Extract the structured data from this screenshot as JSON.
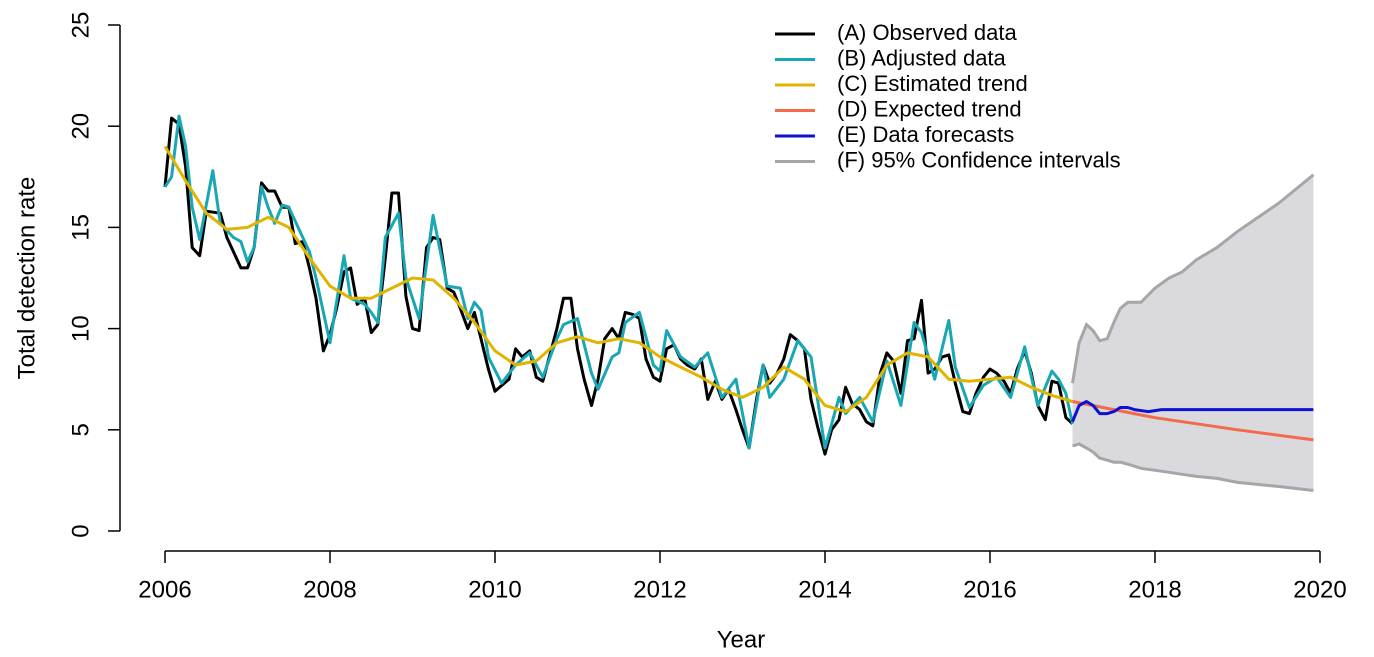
{
  "chart_data": {
    "type": "line",
    "xlabel": "Year",
    "ylabel": "Total detection rate",
    "xlim": [
      2006,
      2020
    ],
    "xticks": [
      2006,
      2008,
      2010,
      2012,
      2014,
      2016,
      2018,
      2020
    ],
    "ylim": [
      0,
      25
    ],
    "yticks": [
      0,
      5,
      10,
      15,
      20,
      25
    ],
    "legend": "top-right",
    "series": [
      {
        "name": "(A) Observed data",
        "color": "#000000",
        "x": [
          2006,
          2006.08,
          2006.17,
          2006.25,
          2006.33,
          2006.42,
          2006.5,
          2006.67,
          2006.75,
          2006.92,
          2007,
          2007.08,
          2007.17,
          2007.25,
          2007.33,
          2007.42,
          2007.5,
          2007.58,
          2007.67,
          2007.75,
          2007.83,
          2007.92,
          2008,
          2008.08,
          2008.17,
          2008.25,
          2008.33,
          2008.42,
          2008.5,
          2008.58,
          2008.67,
          2008.75,
          2008.83,
          2008.92,
          2009,
          2009.08,
          2009.17,
          2009.25,
          2009.33,
          2009.42,
          2009.5,
          2009.58,
          2009.67,
          2009.75,
          2009.83,
          2009.92,
          2010,
          2010.17,
          2010.25,
          2010.33,
          2010.42,
          2010.5,
          2010.58,
          2010.75,
          2010.83,
          2010.92,
          2011,
          2011.08,
          2011.17,
          2011.25,
          2011.33,
          2011.42,
          2011.5,
          2011.58,
          2011.67,
          2011.75,
          2011.83,
          2011.92,
          2012,
          2012.08,
          2012.17,
          2012.25,
          2012.33,
          2012.42,
          2012.5,
          2012.58,
          2012.67,
          2012.75,
          2012.83,
          2012.92,
          2013,
          2013.08,
          2013.17,
          2013.25,
          2013.33,
          2013.42,
          2013.5,
          2013.58,
          2013.67,
          2013.75,
          2013.83,
          2013.92,
          2014,
          2014.08,
          2014.17,
          2014.25,
          2014.33,
          2014.42,
          2014.5,
          2014.58,
          2014.67,
          2014.75,
          2014.83,
          2014.92,
          2015,
          2015.08,
          2015.17,
          2015.25,
          2015.33,
          2015.42,
          2015.5,
          2015.58,
          2015.67,
          2015.75,
          2015.83,
          2015.92,
          2016,
          2016.08,
          2016.17,
          2016.25,
          2016.33,
          2016.42,
          2016.5,
          2016.58,
          2016.67,
          2016.75,
          2016.83,
          2016.92,
          2017
        ],
        "values": [
          17,
          20.4,
          20.1,
          18,
          14,
          13.6,
          15.8,
          15.7,
          14.5,
          13,
          13,
          14,
          17.2,
          16.8,
          16.8,
          16,
          16,
          14.2,
          14.3,
          13,
          11.5,
          8.9,
          9.7,
          11,
          12.8,
          13,
          11.2,
          11.5,
          9.8,
          10.2,
          13.5,
          16.7,
          16.7,
          11.6,
          10,
          9.9,
          14,
          14.5,
          14.4,
          12,
          11.8,
          11,
          10,
          10.8,
          9.5,
          8,
          6.9,
          7.5,
          9,
          8.6,
          8.9,
          7.6,
          7.4,
          10,
          11.5,
          11.5,
          9,
          7.5,
          6.2,
          7.5,
          9.5,
          10,
          9.5,
          10.8,
          10.7,
          10.5,
          8.5,
          7.6,
          7.4,
          9,
          9.2,
          8.5,
          8.2,
          8,
          8.5,
          6.5,
          7.4,
          6.5,
          7,
          6,
          5,
          4.1,
          6.5,
          8.2,
          7.3,
          7.8,
          8.5,
          9.7,
          9.4,
          9,
          6.5,
          5,
          3.8,
          5,
          5.5,
          7.1,
          6.3,
          6,
          5.4,
          5.2,
          7.8,
          8.8,
          8.4,
          6.8,
          9.4,
          9.5,
          11.4,
          7.8,
          8,
          8.6,
          8.7,
          7.3,
          5.9,
          5.8,
          6.8,
          7.6,
          8,
          7.8,
          7.4,
          6.8,
          8,
          8.9,
          7.8,
          6.2,
          5.5,
          7.4,
          7.3,
          5.6,
          5.3
        ]
      },
      {
        "name": "(B) Adjusted data",
        "color": "#1aa7b5",
        "x": [
          2006,
          2006.08,
          2006.17,
          2006.25,
          2006.33,
          2006.42,
          2006.58,
          2006.67,
          2006.83,
          2006.92,
          2007,
          2007.08,
          2007.17,
          2007.25,
          2007.33,
          2007.42,
          2007.5,
          2007.67,
          2007.75,
          2007.83,
          2008,
          2008.17,
          2008.25,
          2008.42,
          2008.5,
          2008.58,
          2008.67,
          2008.83,
          2008.92,
          2009.08,
          2009.25,
          2009.42,
          2009.58,
          2009.67,
          2009.75,
          2009.83,
          2009.92,
          2010.08,
          2010.25,
          2010.42,
          2010.58,
          2010.75,
          2010.83,
          2011,
          2011.17,
          2011.25,
          2011.42,
          2011.5,
          2011.58,
          2011.75,
          2011.92,
          2012,
          2012.08,
          2012.25,
          2012.42,
          2012.58,
          2012.75,
          2012.92,
          2013.08,
          2013.25,
          2013.33,
          2013.5,
          2013.67,
          2013.83,
          2014,
          2014.17,
          2014.25,
          2014.42,
          2014.58,
          2014.75,
          2014.92,
          2015.08,
          2015.17,
          2015.33,
          2015.5,
          2015.58,
          2015.75,
          2015.92,
          2016.08,
          2016.25,
          2016.42,
          2016.58,
          2016.75,
          2016.83,
          2016.92,
          2017
        ],
        "values": [
          17,
          17.5,
          20.5,
          19,
          16,
          14.4,
          17.8,
          15.2,
          14.5,
          14.3,
          13.3,
          14,
          17,
          16,
          15.2,
          16.1,
          16,
          14.5,
          13.8,
          12.5,
          9.3,
          13.6,
          11.5,
          11.2,
          10.8,
          10.3,
          14.5,
          15.7,
          12.5,
          10.5,
          15.6,
          12.1,
          12,
          10.5,
          11.3,
          10.9,
          8.6,
          7.3,
          8.2,
          8.8,
          7.6,
          9.5,
          10.2,
          10.5,
          7.8,
          7,
          8.6,
          8.8,
          10.3,
          10.8,
          8.2,
          7.9,
          9.9,
          8.6,
          8.1,
          8.8,
          6.6,
          7.5,
          4.1,
          8.2,
          6.6,
          7.5,
          9.4,
          8.6,
          4.1,
          6.6,
          5.8,
          6.6,
          5.4,
          8.4,
          6.2,
          10.3,
          9.8,
          7.5,
          10.4,
          8.1,
          6.1,
          7.2,
          7.6,
          6.6,
          9.1,
          6.2,
          7.9,
          7.5,
          6.8,
          5.3
        ]
      },
      {
        "name": "(C) Estimated trend",
        "color": "#e0b400",
        "x": [
          2006,
          2006.25,
          2006.5,
          2006.75,
          2007,
          2007.25,
          2007.5,
          2007.75,
          2008,
          2008.25,
          2008.5,
          2008.75,
          2009,
          2009.25,
          2009.5,
          2009.75,
          2010,
          2010.25,
          2010.5,
          2010.75,
          2011,
          2011.25,
          2011.5,
          2011.75,
          2012,
          2012.25,
          2012.5,
          2012.75,
          2013,
          2013.25,
          2013.5,
          2013.75,
          2014,
          2014.25,
          2014.5,
          2014.75,
          2015,
          2015.25,
          2015.5,
          2015.75,
          2016,
          2016.25,
          2016.5,
          2016.75,
          2017
        ],
        "values": [
          19,
          17.3,
          15.7,
          14.9,
          15,
          15.5,
          15,
          13.5,
          12.1,
          11.5,
          11.5,
          12,
          12.5,
          12.4,
          11.5,
          10.3,
          8.9,
          8.2,
          8.4,
          9.3,
          9.6,
          9.3,
          9.5,
          9.3,
          8.6,
          8.1,
          7.6,
          7,
          6.6,
          7.1,
          8.1,
          7.5,
          6.2,
          5.9,
          6.6,
          8.2,
          8.8,
          8.6,
          7.5,
          7.4,
          7.5,
          7.6,
          7.1,
          6.7,
          6.4
        ]
      },
      {
        "name": "(D) Expected trend",
        "color": "#f26b4a",
        "x": [
          2017,
          2018,
          2019,
          2019.92
        ],
        "values": [
          6.4,
          5.6,
          5.0,
          4.5
        ]
      },
      {
        "name": "(E) Data forecasts",
        "color": "#1010d0",
        "x": [
          2017,
          2017.08,
          2017.17,
          2017.25,
          2017.33,
          2017.42,
          2017.5,
          2017.58,
          2017.67,
          2017.75,
          2017.92,
          2018.08,
          2018.5,
          2019.92
        ],
        "values": [
          5.4,
          6.2,
          6.4,
          6.2,
          5.8,
          5.8,
          5.9,
          6.1,
          6.1,
          6,
          5.9,
          6,
          6,
          6
        ]
      },
      {
        "name": "(F) 95% Confidence intervals",
        "color": "#a6a6a6",
        "fill": "#d9d9de",
        "x": [
          2017,
          2017.08,
          2017.17,
          2017.25,
          2017.33,
          2017.42,
          2017.5,
          2017.58,
          2017.67,
          2017.83,
          2018,
          2018.17,
          2018.33,
          2018.5,
          2018.75,
          2019,
          2019.5,
          2019.92
        ],
        "upper": [
          7.3,
          9.3,
          10.2,
          9.9,
          9.4,
          9.5,
          10.3,
          11,
          11.3,
          11.3,
          12,
          12.5,
          12.8,
          13.4,
          14,
          14.8,
          16.2,
          17.6
        ],
        "lower": [
          4.2,
          4.3,
          4.1,
          3.9,
          3.6,
          3.5,
          3.4,
          3.4,
          3.3,
          3.1,
          3.0,
          2.9,
          2.8,
          2.7,
          2.6,
          2.4,
          2.2,
          2.0
        ]
      }
    ]
  }
}
